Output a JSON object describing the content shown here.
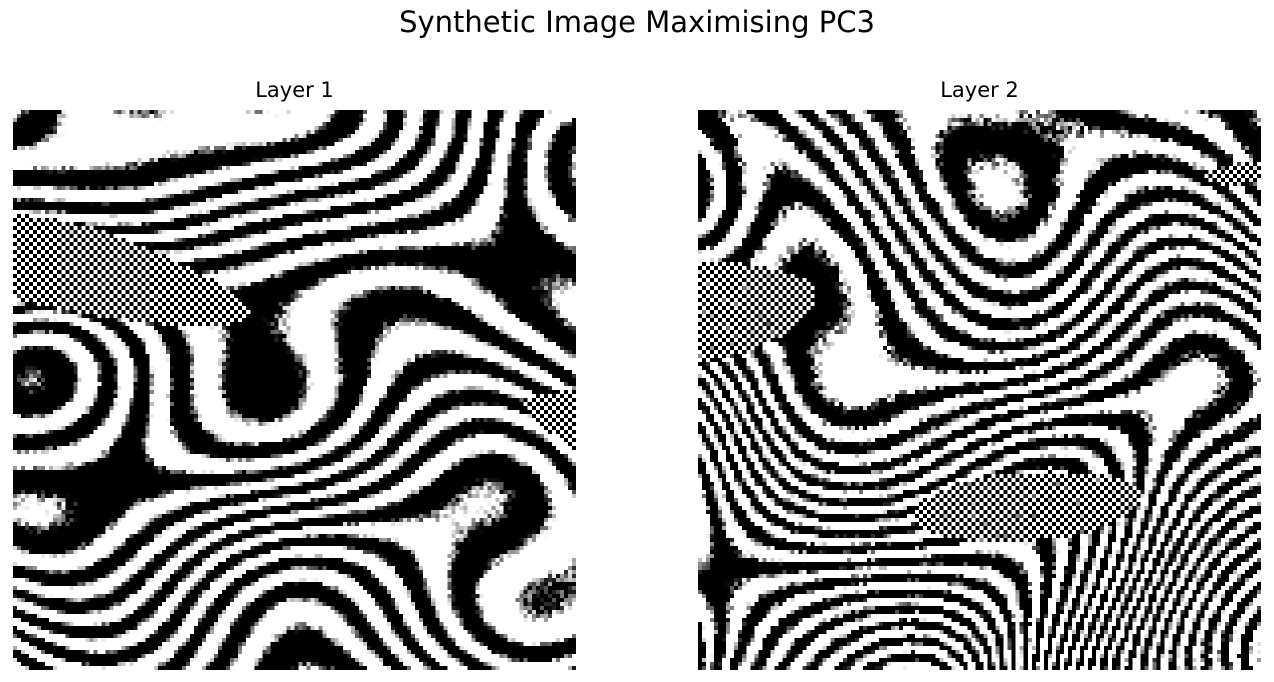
{
  "figure": {
    "suptitle": "Synthetic Image Maximising PC3"
  },
  "panels": [
    {
      "title": "Layer 1",
      "colormap": "gray",
      "pattern": "fine-zebra-stripes",
      "seed": 11
    },
    {
      "title": "Layer 2",
      "colormap": "gray",
      "pattern": "diagonal-streaks-with-dither",
      "seed": 37
    }
  ]
}
